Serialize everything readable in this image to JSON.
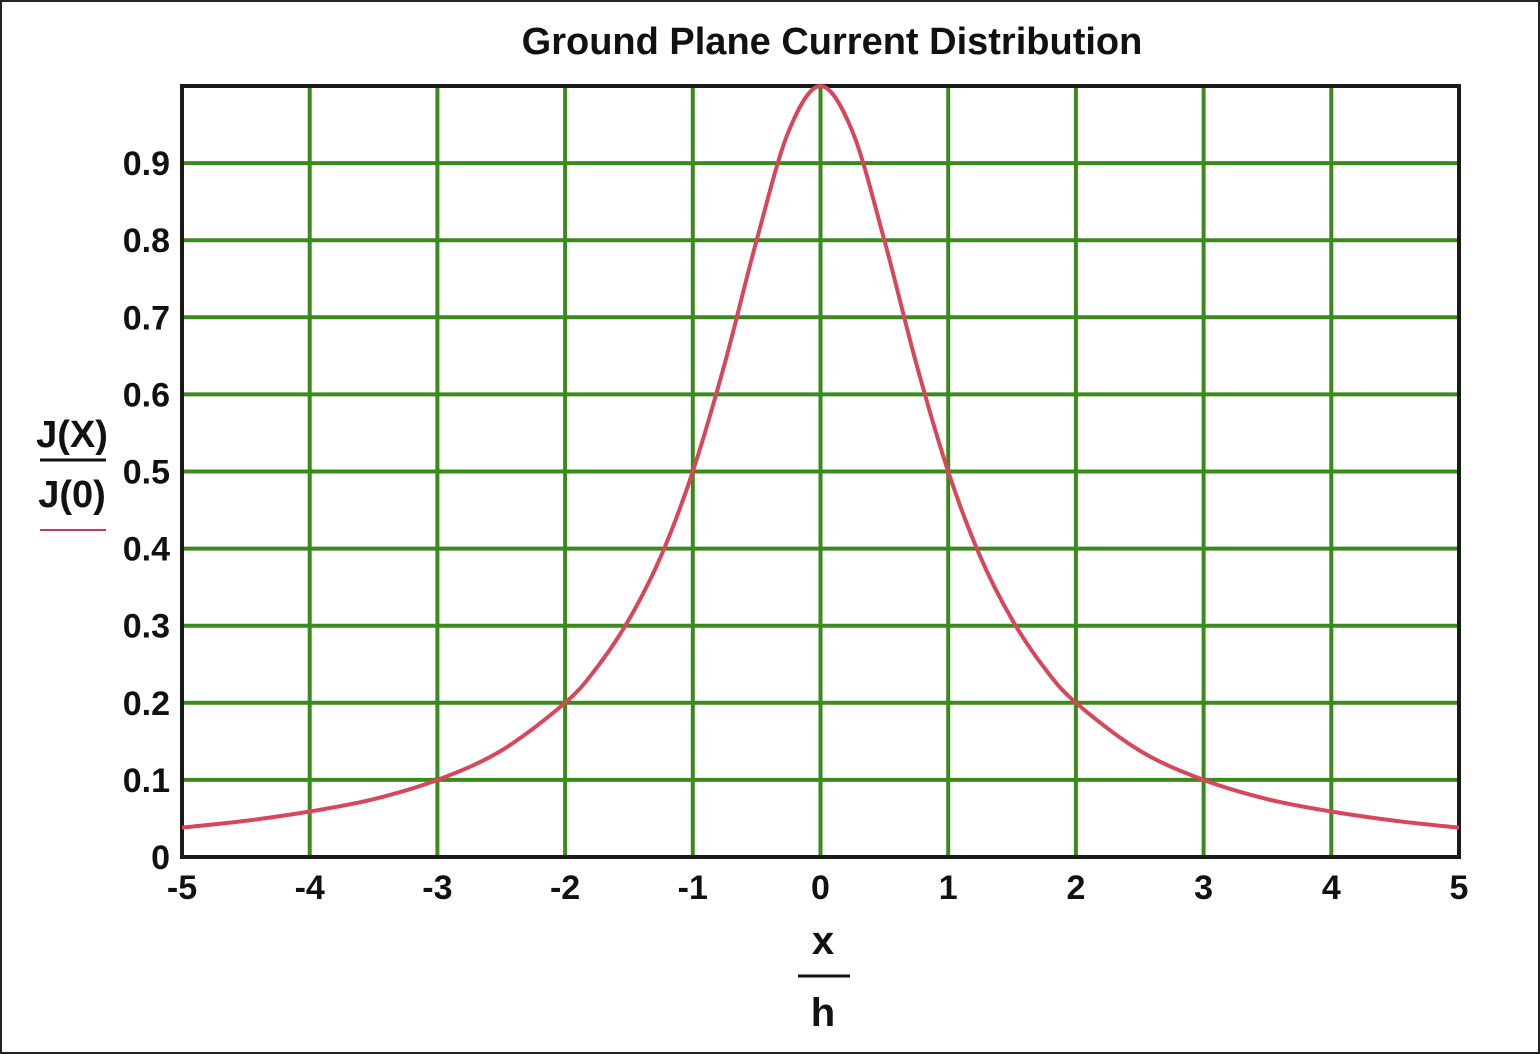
{
  "chart_data": {
    "type": "line",
    "title": "Ground Plane Current Distribution",
    "ylabel": {
      "numerator": "J(X)",
      "denominator": "J(0)"
    },
    "xlabel": {
      "numerator": "x",
      "denominator": "h"
    },
    "xlim": [
      -5,
      5
    ],
    "ylim": [
      0,
      1
    ],
    "x_ticks": [
      "-5",
      "-4",
      "-3",
      "-2",
      "-1",
      "0",
      "1",
      "2",
      "3",
      "4",
      "5"
    ],
    "y_ticks": [
      "0",
      "0.1",
      "0.2",
      "0.3",
      "0.4",
      "0.5",
      "0.6",
      "0.7",
      "0.8",
      "0.9"
    ],
    "grid": true,
    "colors": {
      "grid": "#3a8a1e",
      "line": "#d8465a",
      "axis": "#1a1a1a"
    },
    "series": [
      {
        "x": [
          -5,
          -4.5,
          -4,
          -3.5,
          -3,
          -2.5,
          -2,
          -1.75,
          -1.5,
          -1.25,
          -1,
          -0.75,
          -0.5,
          -0.25,
          0,
          0.25,
          0.5,
          0.75,
          1,
          1.25,
          1.5,
          1.75,
          2,
          2.5,
          3,
          3.5,
          4,
          4.5,
          5
        ],
        "y": [
          0.038,
          0.047,
          0.059,
          0.075,
          0.1,
          0.138,
          0.2,
          0.246,
          0.308,
          0.39,
          0.5,
          0.64,
          0.8,
          0.941,
          1.0,
          0.941,
          0.8,
          0.64,
          0.5,
          0.39,
          0.308,
          0.246,
          0.2,
          0.138,
          0.1,
          0.075,
          0.059,
          0.047,
          0.038
        ]
      }
    ]
  }
}
